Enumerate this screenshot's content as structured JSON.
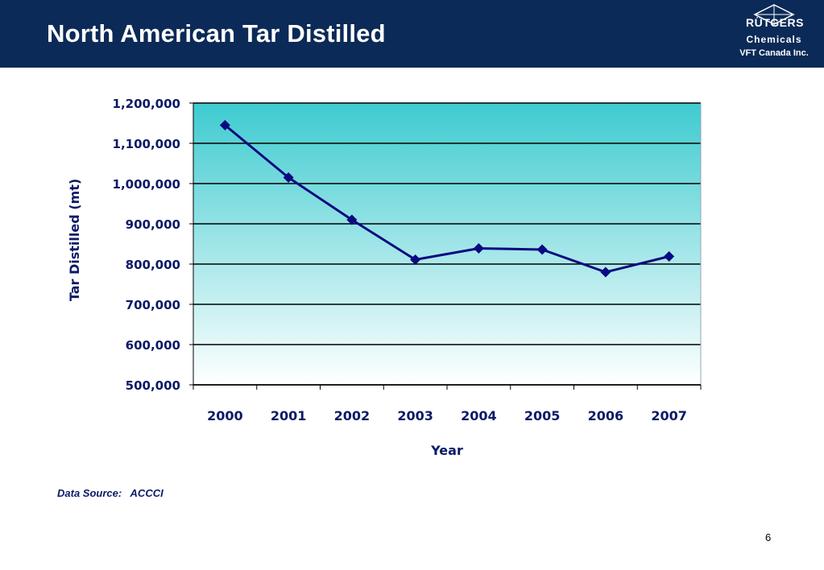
{
  "header": {
    "title": "North American Tar Distilled",
    "logo_wordmark": "RÜTGERS",
    "logo_sub": "Chemicals",
    "logo_company": "VFT Canada Inc."
  },
  "colors": {
    "header_bg": "#0b2a57",
    "series_line": "#0a0a80",
    "plot_top": "#3ecbd0",
    "plot_bottom": "#ffffff",
    "text_navy": "#0b1a66"
  },
  "chart_data": {
    "type": "line",
    "title": "",
    "xlabel": "Year",
    "ylabel": "Tar Distilled (mt)",
    "categories": [
      "2000",
      "2001",
      "2002",
      "2003",
      "2004",
      "2005",
      "2006",
      "2007"
    ],
    "series": [
      {
        "values": [
          1145000,
          1015000,
          910000,
          811000,
          839000,
          836000,
          780000,
          819000
        ]
      }
    ],
    "ylim": [
      500000,
      1200000
    ],
    "yticks": [
      "500,000",
      "600,000",
      "700,000",
      "800,000",
      "900,000",
      "1,000,000",
      "1,100,000",
      "1,200,000"
    ],
    "grid": true,
    "marker": "diamond"
  },
  "footer": {
    "source": "Data Source:   ACCCI",
    "page_number": "6"
  }
}
